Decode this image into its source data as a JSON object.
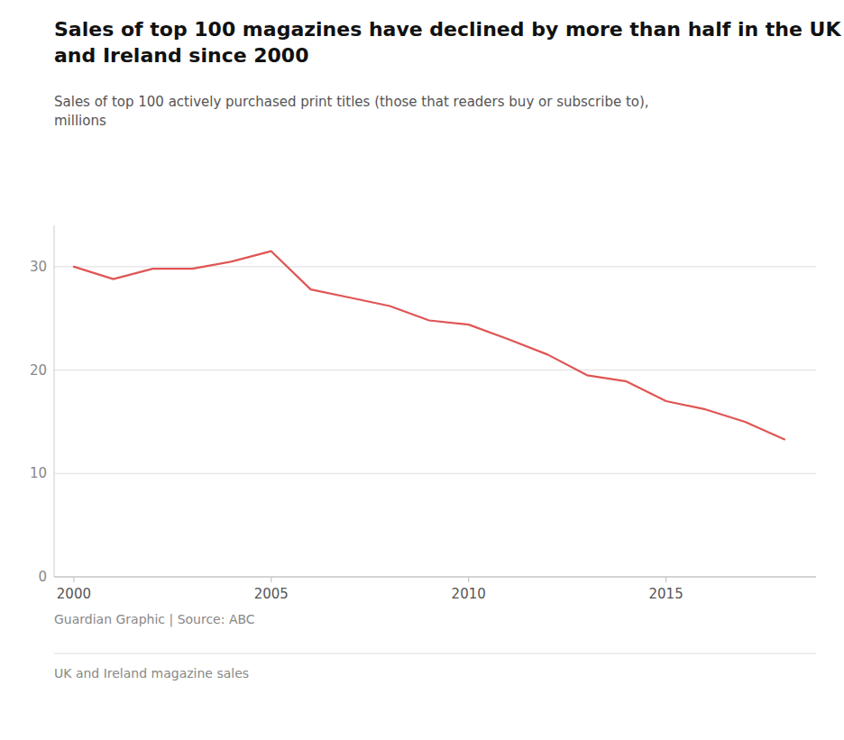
{
  "chart_data": {
    "type": "line",
    "title": "Sales of top 100 magazines have declined by more than half in the UK\nand Ireland since 2000",
    "subtitle": "Sales of top 100 actively purchased print titles (those that readers buy or subscribe to),\nmillions",
    "annotations": [
      "Guardian Graphic | Source: ABC",
      "UK and Ireland magazine sales"
    ],
    "x": [
      2000,
      2001,
      2002,
      2003,
      2004,
      2005,
      2006,
      2007,
      2008,
      2009,
      2010,
      2011,
      2012,
      2013,
      2014,
      2015,
      2016,
      2017,
      2018
    ],
    "values": [
      30.0,
      28.8,
      29.8,
      29.8,
      30.5,
      31.5,
      27.8,
      27.0,
      26.2,
      24.8,
      24.4,
      23.0,
      21.5,
      19.5,
      18.9,
      17.0,
      16.2,
      15.0,
      13.3
    ],
    "color": "#e05555",
    "xlim": [
      1999.5,
      2018.8
    ],
    "xticks": [
      2000,
      2005,
      2010,
      2015
    ],
    "ylim": [
      0,
      34
    ],
    "yticks": [
      0,
      10,
      20,
      30
    ],
    "grid": true
  }
}
